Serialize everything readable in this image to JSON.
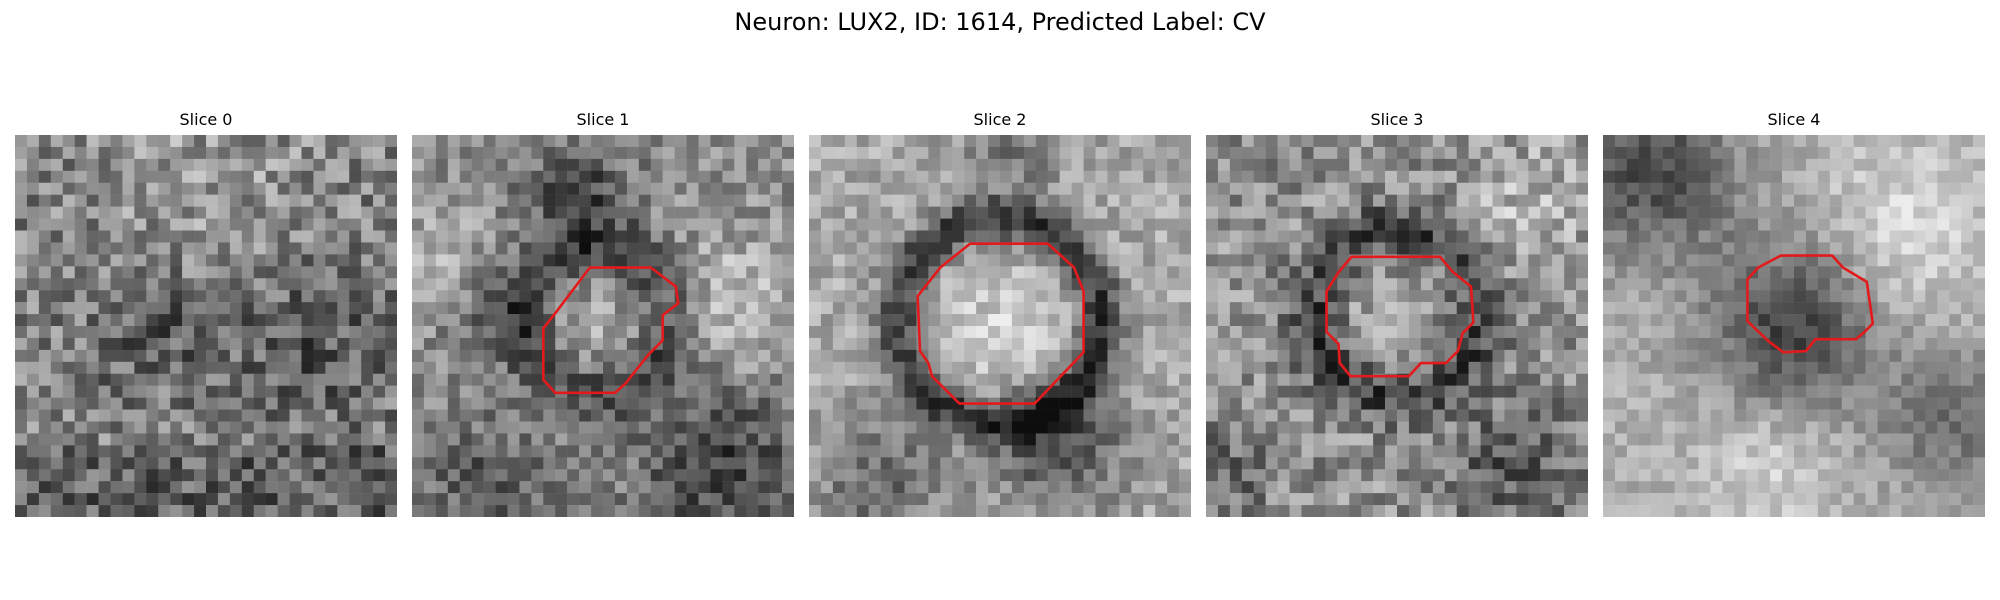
{
  "figure": {
    "title": "Neuron: LUX2, ID: 1614, Predicted Label: CV"
  },
  "panels": [
    {
      "title": "Slice 0"
    },
    {
      "title": "Slice 1"
    },
    {
      "title": "Slice 2"
    },
    {
      "title": "Slice 3"
    },
    {
      "title": "Slice 4"
    }
  ],
  "colors": {
    "contour": "#e31a1c",
    "background": "#ffffff"
  }
}
